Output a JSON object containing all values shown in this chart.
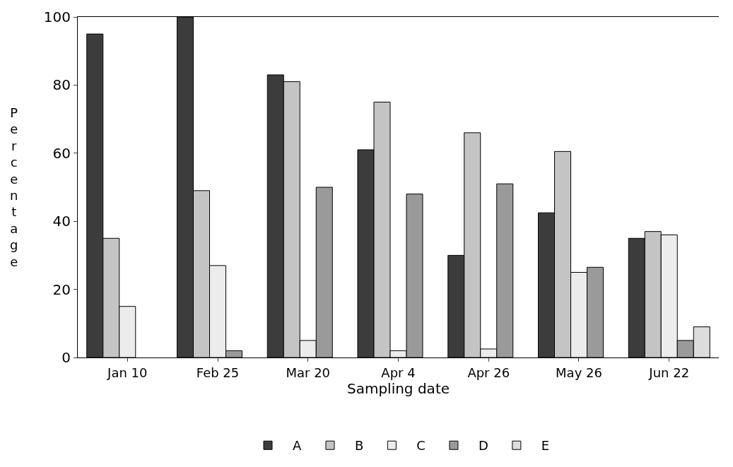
{
  "chart_data": {
    "type": "bar",
    "xlabel": "Sampling date",
    "ylabel": "Percentage",
    "categories": [
      "Jan 10",
      "Feb 25",
      "Mar 20",
      "Apr 4",
      "Apr 26",
      "May 26",
      "Jun 22"
    ],
    "series": [
      {
        "name": "A",
        "color": "#3c3c3c",
        "values": [
          95,
          100,
          83,
          61,
          30,
          42.5,
          35
        ]
      },
      {
        "name": "B",
        "color": "#c4c4c4",
        "values": [
          35,
          49,
          81,
          75,
          66,
          60.5,
          37
        ]
      },
      {
        "name": "C",
        "color": "#ececec",
        "values": [
          15,
          27,
          5,
          2,
          2.5,
          25,
          36
        ]
      },
      {
        "name": "D",
        "color": "#9a9a9a",
        "values": [
          null,
          2,
          50,
          48,
          51,
          26.5,
          5
        ]
      },
      {
        "name": "E",
        "color": "#dcdcdc",
        "values": [
          null,
          null,
          null,
          null,
          null,
          null,
          9
        ]
      }
    ],
    "ylim": [
      0,
      100
    ],
    "yticks": [
      0,
      20,
      40,
      60,
      80,
      100
    ],
    "grid": false,
    "legend": "bottom"
  }
}
